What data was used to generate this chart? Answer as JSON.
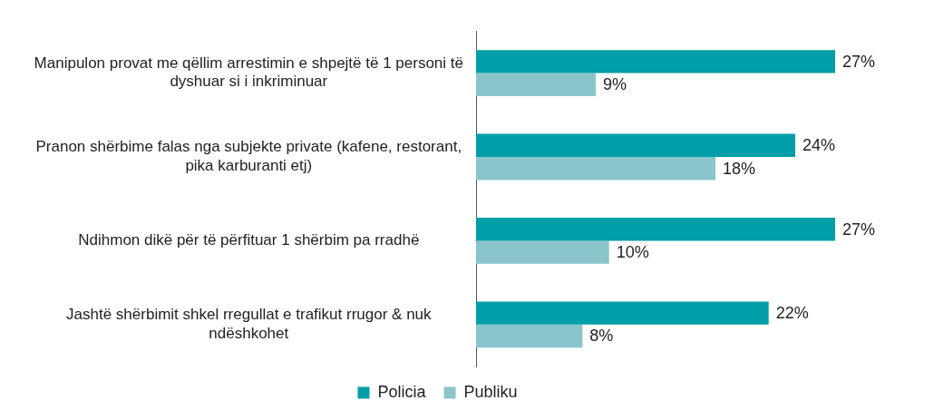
{
  "chart_data": {
    "type": "bar",
    "orientation": "horizontal",
    "legend": "bottom",
    "categories": [
      "Manipulon provat me qëllim arrestimin e shpejtë të 1 personi të dyshuar si i inkriminuar",
      "Pranon shërbime falas nga subjekte private (kafene, restorant, pika karburanti etj)",
      "Ndihmon dikë për të përfituar 1 shërbim pa rradhë",
      "Jashtë shërbimit shkel rregullat e trafikut rrugor & nuk ndëshkohet"
    ],
    "series": [
      {
        "name": "Policia",
        "color": "#009ea8",
        "values": [
          27,
          24,
          27,
          22
        ],
        "value_labels": [
          "27%",
          "24%",
          "27%",
          "22%"
        ]
      },
      {
        "name": "Publiku",
        "color": "#8ac5cc",
        "values": [
          9,
          18,
          10,
          8
        ],
        "value_labels": [
          "9%",
          "18%",
          "10%",
          "8%"
        ]
      }
    ]
  }
}
